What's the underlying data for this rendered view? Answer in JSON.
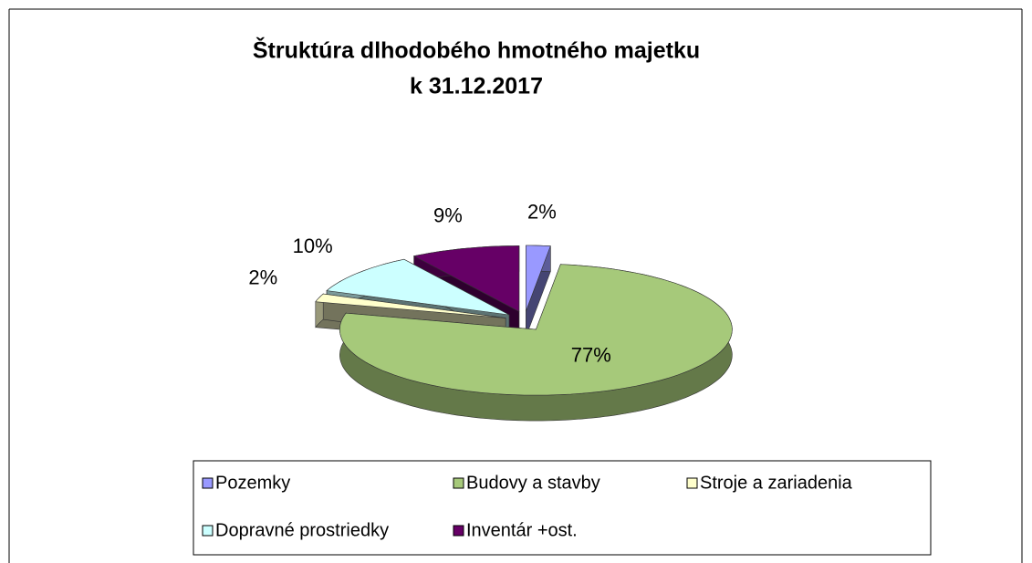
{
  "chart_data": {
    "type": "pie3d",
    "title": [
      "Štruktúra dlhodobého hmotného majetku",
      "k 31.12.2017"
    ],
    "categories": [
      "Pozemky",
      "Budovy a stavby",
      "Stroje a zariadenia",
      "Dopravné prostriedky",
      "Inventár +ost."
    ],
    "values": [
      2,
      77,
      2,
      10,
      9
    ],
    "value_labels": [
      "2%",
      "77%",
      "2%",
      "10%",
      "9%"
    ],
    "colors": [
      "#9999ff",
      "#a6c97a",
      "#ffffcc",
      "#ccffff",
      "#660066"
    ],
    "legend": "bottom"
  }
}
